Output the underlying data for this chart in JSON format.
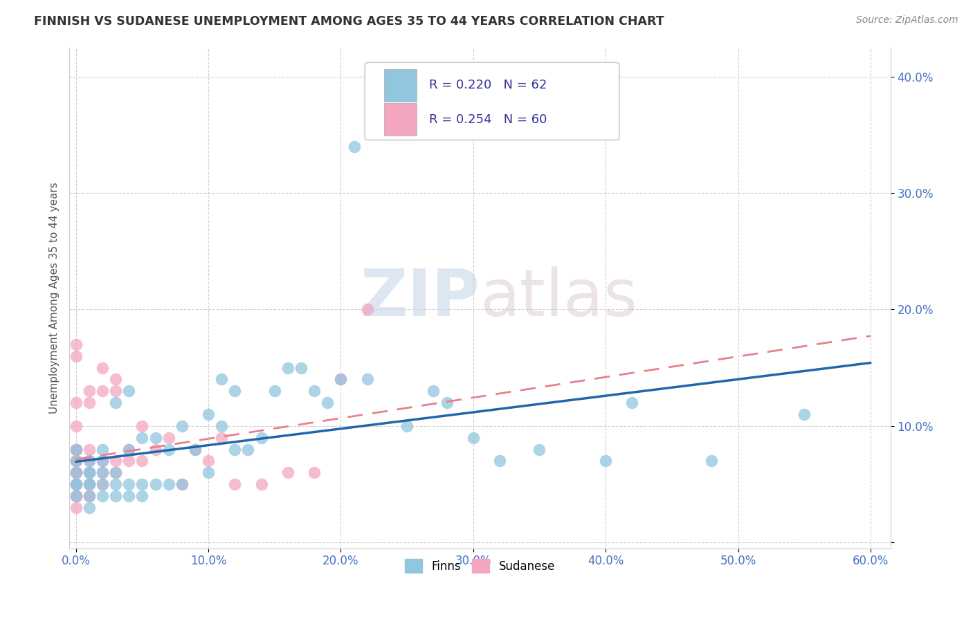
{
  "title": "FINNISH VS SUDANESE UNEMPLOYMENT AMONG AGES 35 TO 44 YEARS CORRELATION CHART",
  "source": "Source: ZipAtlas.com",
  "xlabel": "",
  "ylabel": "Unemployment Among Ages 35 to 44 years",
  "xlim": [
    -0.005,
    0.615
  ],
  "ylim": [
    -0.005,
    0.425
  ],
  "xticks": [
    0.0,
    0.1,
    0.2,
    0.3,
    0.4,
    0.5,
    0.6
  ],
  "yticks": [
    0.0,
    0.1,
    0.2,
    0.3,
    0.4
  ],
  "xticklabels": [
    "0.0%",
    "10.0%",
    "20.0%",
    "30.0%",
    "40.0%",
    "50.0%",
    "60.0%"
  ],
  "yticklabels": [
    "",
    "10.0%",
    "20.0%",
    "30.0%",
    "40.0%"
  ],
  "legend_r_finns": "R = 0.220",
  "legend_n_finns": "N = 62",
  "legend_r_sudanese": "R = 0.254",
  "legend_n_sudanese": "N = 60",
  "finns_color": "#92c5de",
  "sudanese_color": "#f4a6c0",
  "finns_line_color": "#2166ac",
  "sudanese_line_color": "#e8808a",
  "watermark_zip": "ZIP",
  "watermark_atlas": "atlas",
  "background_color": "#ffffff",
  "grid_color": "#cccccc",
  "tick_color": "#4472c4",
  "title_color": "#333333",
  "source_color": "#888888",
  "ylabel_color": "#555555",
  "finns_x": [
    0.0,
    0.0,
    0.0,
    0.0,
    0.0,
    0.0,
    0.01,
    0.01,
    0.01,
    0.01,
    0.01,
    0.01,
    0.01,
    0.02,
    0.02,
    0.02,
    0.02,
    0.02,
    0.03,
    0.03,
    0.03,
    0.03,
    0.04,
    0.04,
    0.04,
    0.04,
    0.05,
    0.05,
    0.05,
    0.06,
    0.06,
    0.07,
    0.07,
    0.08,
    0.08,
    0.09,
    0.1,
    0.1,
    0.11,
    0.11,
    0.12,
    0.12,
    0.13,
    0.14,
    0.15,
    0.16,
    0.17,
    0.18,
    0.19,
    0.2,
    0.21,
    0.22,
    0.25,
    0.27,
    0.28,
    0.3,
    0.32,
    0.35,
    0.4,
    0.42,
    0.48,
    0.55
  ],
  "finns_y": [
    0.04,
    0.05,
    0.06,
    0.07,
    0.08,
    0.05,
    0.04,
    0.05,
    0.06,
    0.07,
    0.03,
    0.05,
    0.06,
    0.04,
    0.05,
    0.06,
    0.07,
    0.08,
    0.04,
    0.05,
    0.06,
    0.12,
    0.04,
    0.05,
    0.08,
    0.13,
    0.04,
    0.05,
    0.09,
    0.05,
    0.09,
    0.05,
    0.08,
    0.05,
    0.1,
    0.08,
    0.06,
    0.11,
    0.1,
    0.14,
    0.08,
    0.13,
    0.08,
    0.09,
    0.13,
    0.15,
    0.15,
    0.13,
    0.12,
    0.14,
    0.34,
    0.14,
    0.1,
    0.13,
    0.12,
    0.09,
    0.07,
    0.08,
    0.07,
    0.12,
    0.07,
    0.11
  ],
  "sudanese_x": [
    0.0,
    0.0,
    0.0,
    0.0,
    0.0,
    0.0,
    0.0,
    0.0,
    0.0,
    0.0,
    0.0,
    0.0,
    0.0,
    0.0,
    0.0,
    0.0,
    0.0,
    0.0,
    0.0,
    0.0,
    0.0,
    0.0,
    0.0,
    0.0,
    0.0,
    0.01,
    0.01,
    0.01,
    0.01,
    0.01,
    0.01,
    0.01,
    0.01,
    0.01,
    0.01,
    0.02,
    0.02,
    0.02,
    0.02,
    0.02,
    0.03,
    0.03,
    0.03,
    0.03,
    0.04,
    0.04,
    0.05,
    0.05,
    0.06,
    0.07,
    0.08,
    0.09,
    0.1,
    0.11,
    0.12,
    0.14,
    0.16,
    0.18,
    0.2,
    0.22
  ],
  "sudanese_y": [
    0.04,
    0.05,
    0.06,
    0.07,
    0.08,
    0.1,
    0.12,
    0.04,
    0.05,
    0.06,
    0.07,
    0.08,
    0.04,
    0.05,
    0.06,
    0.07,
    0.08,
    0.03,
    0.05,
    0.06,
    0.16,
    0.17,
    0.04,
    0.05,
    0.06,
    0.04,
    0.05,
    0.06,
    0.07,
    0.04,
    0.05,
    0.06,
    0.08,
    0.12,
    0.13,
    0.05,
    0.06,
    0.07,
    0.13,
    0.15,
    0.06,
    0.07,
    0.13,
    0.14,
    0.07,
    0.08,
    0.07,
    0.1,
    0.08,
    0.09,
    0.05,
    0.08,
    0.07,
    0.09,
    0.05,
    0.05,
    0.06,
    0.06,
    0.14,
    0.2
  ]
}
